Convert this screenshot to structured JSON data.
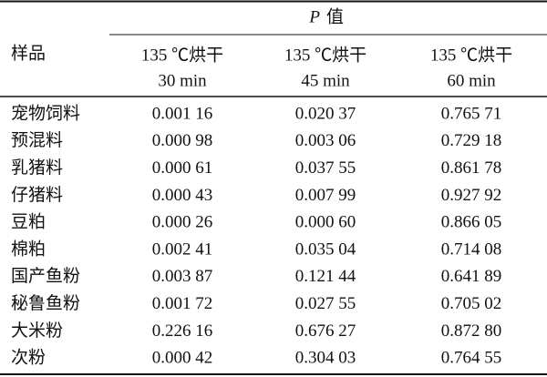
{
  "table": {
    "p_symbol": "P",
    "p_word": "值",
    "row_header": "样品",
    "columns": [
      [
        "135 ℃烘干",
        "30 min"
      ],
      [
        "135 ℃烘干",
        "45 min"
      ],
      [
        "135 ℃烘干",
        "60 min"
      ]
    ],
    "rows": [
      [
        "宠物饲料",
        "0.001 16",
        "0.020 37",
        "0.765 71"
      ],
      [
        "预混料",
        "0.000 98",
        "0.003 06",
        "0.729 18"
      ],
      [
        "乳猪料",
        "0.000 61",
        "0.037 55",
        "0.861 78"
      ],
      [
        "仔猪料",
        "0.000 43",
        "0.007 99",
        "0.927 92"
      ],
      [
        "豆粕",
        "0.000 26",
        "0.000 60",
        "0.866 05"
      ],
      [
        "棉粕",
        "0.002 41",
        "0.035 04",
        "0.714 08"
      ],
      [
        "国产鱼粉",
        "0.003 87",
        "0.121 44",
        "0.641 89"
      ],
      [
        "秘鲁鱼粉",
        "0.001 72",
        "0.027 55",
        "0.705 02"
      ],
      [
        "大米粉",
        "0.226 16",
        "0.676 27",
        "0.872 80"
      ],
      [
        "次粉",
        "0.000 42",
        "0.304 03",
        "0.764 55"
      ]
    ]
  }
}
